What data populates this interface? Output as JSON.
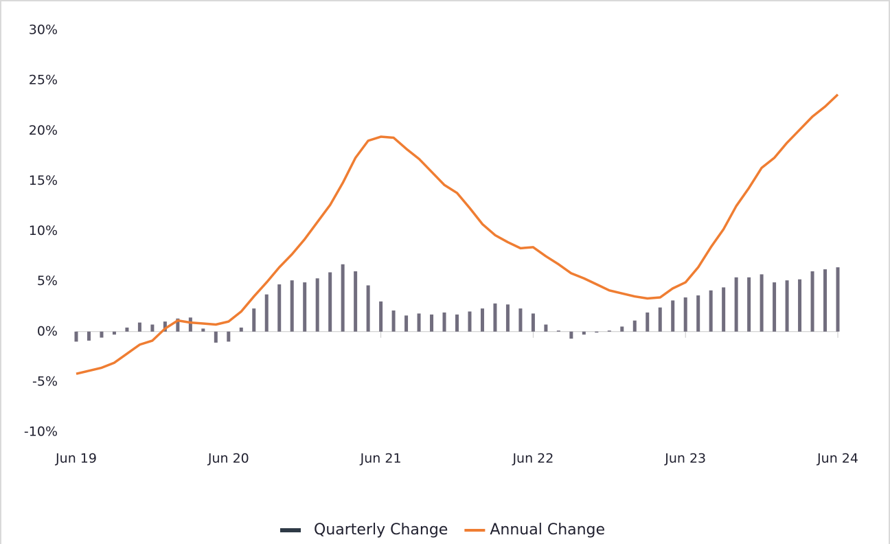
{
  "chart_data": {
    "type": "bar",
    "categories": [
      "Jun 19",
      null,
      null,
      null,
      null,
      null,
      null,
      null,
      null,
      null,
      null,
      null,
      "Jun 20",
      null,
      null,
      null,
      null,
      null,
      null,
      null,
      null,
      null,
      null,
      null,
      "Jun 21",
      null,
      null,
      null,
      null,
      null,
      null,
      null,
      null,
      null,
      null,
      null,
      "Jun 22",
      null,
      null,
      null,
      null,
      null,
      null,
      null,
      null,
      null,
      null,
      null,
      "Jun 23",
      null,
      null,
      null,
      null,
      null,
      null,
      null,
      null,
      null,
      null,
      null,
      "Jun 24"
    ],
    "series": [
      {
        "name": "Quarterly Change",
        "type": "bar",
        "color": "#716d7e",
        "values": [
          -1.0,
          -0.9,
          -0.6,
          -0.3,
          0.4,
          0.9,
          0.7,
          1.0,
          1.3,
          1.4,
          0.3,
          -1.1,
          -1.0,
          0.4,
          2.3,
          3.7,
          4.7,
          5.1,
          4.9,
          5.3,
          5.9,
          6.7,
          6.0,
          4.6,
          3.0,
          2.1,
          1.6,
          1.8,
          1.7,
          1.9,
          1.7,
          2.0,
          2.3,
          2.8,
          2.7,
          2.3,
          1.8,
          0.7,
          0.1,
          -0.7,
          -0.3,
          -0.1,
          0.1,
          0.5,
          1.1,
          1.9,
          2.4,
          3.1,
          3.4,
          3.6,
          4.1,
          4.4,
          5.4,
          5.4,
          5.7,
          4.9,
          5.1,
          5.2,
          6.0,
          6.2,
          6.4
        ]
      },
      {
        "name": "Annual Change",
        "type": "line",
        "color": "#ef7d32",
        "values": [
          -4.2,
          -3.9,
          -3.6,
          -3.1,
          -2.2,
          -1.3,
          -0.9,
          0.3,
          1.1,
          0.9,
          0.8,
          0.7,
          1.0,
          2.0,
          3.5,
          4.9,
          6.4,
          7.7,
          9.2,
          10.9,
          12.6,
          14.8,
          17.3,
          19.0,
          19.4,
          19.3,
          18.2,
          17.2,
          15.9,
          14.6,
          13.8,
          12.3,
          10.7,
          9.6,
          8.9,
          8.3,
          8.4,
          7.5,
          6.7,
          5.8,
          5.3,
          4.7,
          4.1,
          3.8,
          3.5,
          3.3,
          3.4,
          4.3,
          4.9,
          6.4,
          8.4,
          10.2,
          12.5,
          14.3,
          16.3,
          17.3,
          18.8,
          20.1,
          21.4,
          22.4,
          23.6
        ]
      }
    ],
    "ylim": [
      -10,
      30
    ],
    "yticks": [
      {
        "value": 30,
        "label": "30%"
      },
      {
        "value": 25,
        "label": "25%"
      },
      {
        "value": 20,
        "label": "20%"
      },
      {
        "value": 15,
        "label": "15%"
      },
      {
        "value": 10,
        "label": "10%"
      },
      {
        "value": 5,
        "label": "5%"
      },
      {
        "value": 0,
        "label": "0%"
      },
      {
        "value": -5,
        "label": "-5%"
      },
      {
        "value": -10,
        "label": "-10%"
      }
    ],
    "grid": false,
    "legend": "bottom"
  }
}
